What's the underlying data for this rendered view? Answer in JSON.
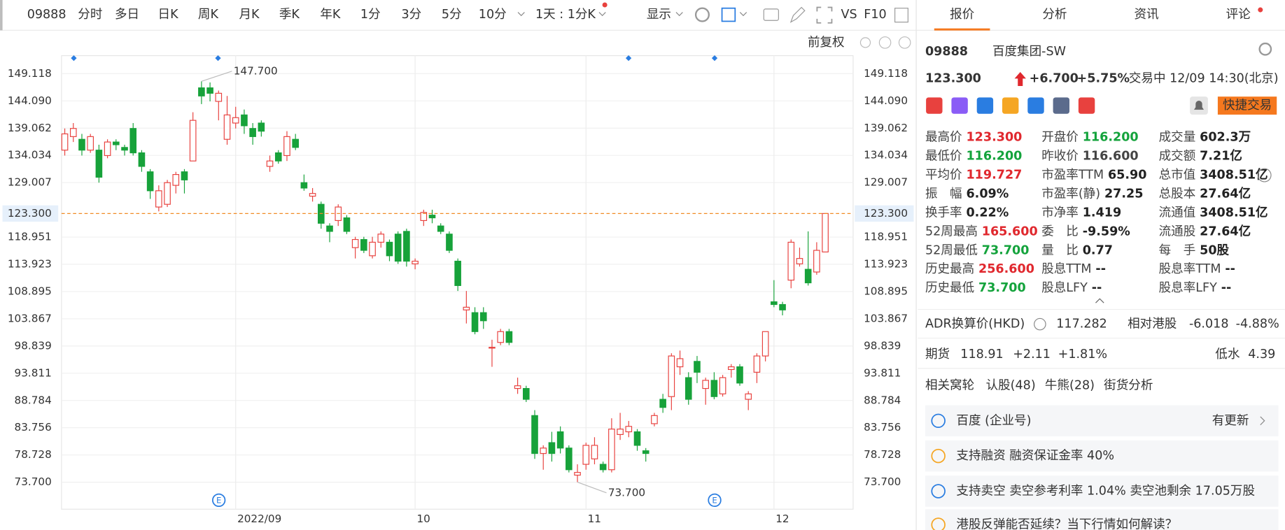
{
  "toolbar": {
    "code": "09888",
    "tabs": [
      "分时",
      "多日",
      "日K",
      "周K",
      "月K",
      "季K",
      "年K",
      "1分",
      "3分",
      "5分",
      "10分"
    ],
    "period": "1天 : 1分K",
    "display": "显示",
    "vs": "VS",
    "f10": "F10",
    "adjust": "前复权"
  },
  "chart_data": {
    "type": "candlestick",
    "up_color": "#e8413e",
    "down_color": "#17a23a",
    "categories": [
      null,
      null,
      null,
      null,
      null,
      null,
      null,
      null,
      null,
      null,
      null,
      null,
      null,
      null,
      null,
      null,
      null,
      null,
      null,
      null,
      "2022/09",
      null,
      null,
      null,
      null,
      null,
      null,
      null,
      null,
      null,
      null,
      null,
      null,
      null,
      null,
      null,
      null,
      null,
      null,
      null,
      null,
      "10",
      null,
      null,
      null,
      null,
      null,
      null,
      null,
      null,
      null,
      null,
      null,
      null,
      null,
      null,
      null,
      null,
      null,
      null,
      null,
      "11",
      null,
      null,
      null,
      null,
      null,
      null,
      null,
      null,
      null,
      null,
      null,
      null,
      null,
      null,
      null,
      null,
      null,
      null,
      null,
      null,
      null,
      "12",
      null,
      null,
      null,
      null,
      null,
      null
    ],
    "candles": {
      "open": [
        135,
        137.5,
        137,
        135,
        135,
        134,
        136.5,
        135.5,
        139,
        134.5,
        131,
        124.5,
        125,
        128.5,
        131,
        133,
        146.5,
        146.5,
        144,
        137,
        140,
        141.5,
        139,
        140,
        132,
        134.5,
        134,
        137,
        129,
        126.5,
        125,
        121,
        122,
        122.5,
        117,
        118.5,
        115.5,
        118,
        118,
        119.5,
        120,
        114,
        122,
        123,
        121,
        119.5,
        114.5,
        105.5,
        105,
        105,
        98.5,
        99.5,
        101.5,
        91,
        91,
        86,
        79,
        81,
        83,
        80,
        75,
        77,
        78,
        77,
        76,
        82.5,
        83,
        83,
        79.5,
        84.5,
        89,
        89.5,
        95,
        93,
        96,
        91,
        92.5,
        90,
        94.5,
        95,
        89,
        94,
        97,
        107,
        106.5,
        111,
        114,
        113,
        112.5,
        116.2
      ],
      "high": [
        139,
        140,
        138,
        138,
        136,
        137,
        137,
        136,
        140,
        135,
        131.5,
        128.5,
        129.5,
        131,
        131.5,
        142,
        147.7,
        147.5,
        146,
        145,
        143,
        142.5,
        140,
        140.5,
        134,
        135,
        138.5,
        138,
        130.5,
        128,
        125.5,
        121.5,
        125,
        123,
        119,
        119,
        119,
        120,
        118.5,
        120,
        120.5,
        115,
        124,
        124,
        121.5,
        120,
        115,
        109,
        106,
        106,
        100,
        102,
        102,
        93,
        91.5,
        87,
        80.5,
        83,
        84,
        80.5,
        77,
        81,
        82,
        77.5,
        85.5,
        86.5,
        85,
        83.5,
        80,
        86.5,
        90,
        97.5,
        98,
        94,
        97,
        93,
        94,
        93.5,
        95.5,
        95.5,
        90.5,
        97.5,
        101.5,
        111,
        107,
        118.5,
        117,
        120,
        118,
        123.3
      ],
      "low": [
        134,
        136.5,
        134,
        134.5,
        129,
        133.5,
        135,
        134,
        134,
        131,
        126,
        123.7,
        124.5,
        127,
        127,
        133,
        143.5,
        144,
        140.5,
        136,
        139,
        138,
        136,
        137.5,
        131,
        132.5,
        133,
        135,
        127.5,
        125.5,
        120.5,
        118,
        121,
        119.5,
        115,
        116,
        115,
        117,
        114.5,
        114,
        113.5,
        113,
        121,
        121.5,
        119.5,
        116,
        109,
        103,
        101,
        102,
        95,
        99,
        99,
        90,
        88.5,
        78,
        76,
        77.5,
        79,
        75.5,
        73.7,
        76,
        77,
        75.5,
        75.5,
        81.5,
        82,
        79.5,
        77.5,
        84,
        86.5,
        87,
        93.5,
        88,
        92,
        88,
        89,
        89.5,
        93,
        91.5,
        87,
        92,
        96,
        106,
        104.5,
        109.5,
        113.5,
        110,
        112,
        116.2
      ],
      "close": [
        138,
        139,
        135,
        137.5,
        130,
        136.5,
        136,
        135,
        134.5,
        132,
        127.5,
        127.5,
        129,
        130.5,
        129.5,
        140.5,
        145,
        145.5,
        145.5,
        141.5,
        141,
        139.5,
        137.5,
        138.5,
        133,
        133,
        137.5,
        135.5,
        128,
        127,
        121.5,
        120,
        124.5,
        120,
        118.5,
        116.5,
        118,
        119.5,
        115.5,
        114.5,
        114.5,
        114.5,
        123.5,
        122.5,
        120,
        116.5,
        110,
        106,
        101.5,
        103.5,
        98.6,
        101.5,
        99.5,
        91.5,
        89,
        79,
        80,
        79,
        80,
        76,
        75.5,
        80.5,
        80.5,
        76,
        83.5,
        83.5,
        84,
        80.5,
        79,
        86,
        87.5,
        97,
        96.5,
        89,
        94,
        92.5,
        89.5,
        93,
        95,
        92,
        90,
        97,
        101.5,
        106.5,
        105.5,
        118,
        115,
        110.5,
        116.5,
        123.3
      ]
    },
    "ylim": [
      68.71,
      152.44
    ],
    "yticks": [
      149.118,
      {
        "value": 144.09,
        "label": "144.090"
      },
      139.062,
      134.034,
      129.007,
      118.951,
      113.923,
      108.895,
      103.867,
      98.839,
      93.811,
      88.784,
      83.756,
      78.728,
      {
        "value": 73.7,
        "label": "73.700"
      }
    ],
    "grid": true,
    "last_price": {
      "value": 123.3,
      "label": "123.300"
    },
    "high_label": {
      "value": 147.7,
      "label": "147.700"
    },
    "low_label": {
      "value": 73.7,
      "label": "73.700"
    },
    "event_marker": "E"
  },
  "panel": {
    "tabs": [
      "报价",
      "分析",
      "资讯",
      "评论"
    ],
    "code": "09888",
    "name": "百度集团-SW",
    "price": "123.300",
    "change": "+6.700",
    "change_pct": "+5.75%",
    "status": "交易中 12/09 14:30(北京)",
    "trade_button": "快捷交易",
    "stats": [
      [
        {
          "label": "最高价",
          "value": "123.300",
          "color": "#e0282e"
        },
        {
          "label": "开盘价",
          "value": "116.200",
          "color": "#14a33c"
        },
        {
          "label": "成交量",
          "value": "602.3万",
          "color": "#222"
        }
      ],
      [
        {
          "label": "最低价",
          "value": "116.200",
          "color": "#14a33c"
        },
        {
          "label": "昨收价",
          "value": "116.600",
          "color": "#444"
        },
        {
          "label": "成交额",
          "value": "7.21亿",
          "color": "#222"
        }
      ],
      [
        {
          "label": "平均价",
          "value": "119.727",
          "color": "#e0282e"
        },
        {
          "label": "市盈率TTM",
          "value": "65.90",
          "color": "#222"
        },
        {
          "label": "总市值",
          "value": "3408.51亿",
          "color": "#222"
        }
      ],
      [
        {
          "label": "振　幅",
          "value": "6.09%",
          "color": "#222"
        },
        {
          "label": "市盈率(静)",
          "value": "27.25",
          "color": "#222"
        },
        {
          "label": "总股本",
          "value": "27.64亿",
          "color": "#222"
        }
      ],
      [
        {
          "label": "换手率",
          "value": "0.22%",
          "color": "#222"
        },
        {
          "label": "市净率",
          "value": "1.419",
          "color": "#222"
        },
        {
          "label": "流通值",
          "value": "3408.51亿",
          "color": "#222"
        }
      ],
      [
        {
          "label": "52周最高",
          "value": "165.600",
          "color": "#e0282e"
        },
        {
          "label": "委　比",
          "value": "-9.59%",
          "color": "#222"
        },
        {
          "label": "流通股",
          "value": "27.64亿",
          "color": "#222"
        }
      ],
      [
        {
          "label": "52周最低",
          "value": "73.700",
          "color": "#14a33c"
        },
        {
          "label": "量　比",
          "value": "0.77",
          "color": "#222"
        },
        {
          "label": "每　手",
          "value": "50股",
          "color": "#222"
        }
      ],
      [
        {
          "label": "历史最高",
          "value": "256.600",
          "color": "#e0282e"
        },
        {
          "label": "股息TTM",
          "value": "--",
          "color": "#222"
        },
        {
          "label": "股息率TTM",
          "value": "--",
          "color": "#222"
        }
      ],
      [
        {
          "label": "历史最低",
          "value": "73.700",
          "color": "#14a33c"
        },
        {
          "label": "股息LFY",
          "value": "--",
          "color": "#222"
        },
        {
          "label": "股息率LFY",
          "value": "--",
          "color": "#222"
        }
      ]
    ],
    "adr": {
      "label": "ADR换算价(HKD)",
      "value": "117.282",
      "rel_label": "相对港股",
      "rel_change": "-6.018",
      "rel_pct": "-4.88%"
    },
    "futures": {
      "label": "期货",
      "value": "118.91",
      "change": "+2.11",
      "pct": "+1.81%",
      "basis_label": "低水",
      "basis": "4.39"
    },
    "warrants": {
      "label": "相关窝轮",
      "items": [
        "认股(48)",
        "牛熊(28)",
        "街货分析"
      ]
    },
    "notices": [
      {
        "text": "百度 (企业号)",
        "extra": "有更新"
      },
      {
        "text": "支持融资 融资保证金率 40%"
      },
      {
        "text": "支持卖空 卖空参考利率 1.04% 卖空池剩余 17.05万股"
      },
      {
        "text": "港股反弹能否延续？当下行情如何解读？"
      }
    ]
  }
}
